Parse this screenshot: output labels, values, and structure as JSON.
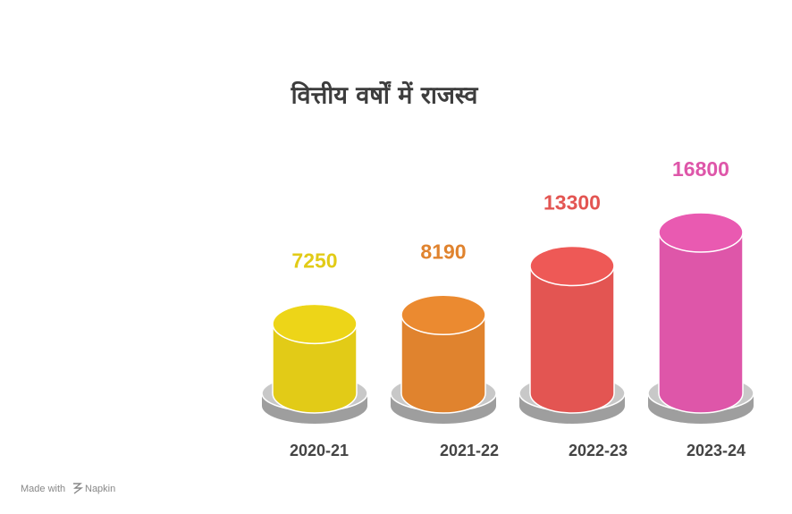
{
  "chart_data": {
    "type": "bar",
    "title": "वित्तीय वर्षों में राजस्व",
    "categories": [
      "2020-21",
      "2021-22",
      "2022-23",
      "2023-24"
    ],
    "values": [
      7250,
      8190,
      13300,
      16800
    ],
    "colors": [
      "#e2cb17",
      "#e0832e",
      "#e35552",
      "#de56a9"
    ]
  },
  "footer": {
    "prefix": "Made with",
    "brand": "Napkin"
  }
}
